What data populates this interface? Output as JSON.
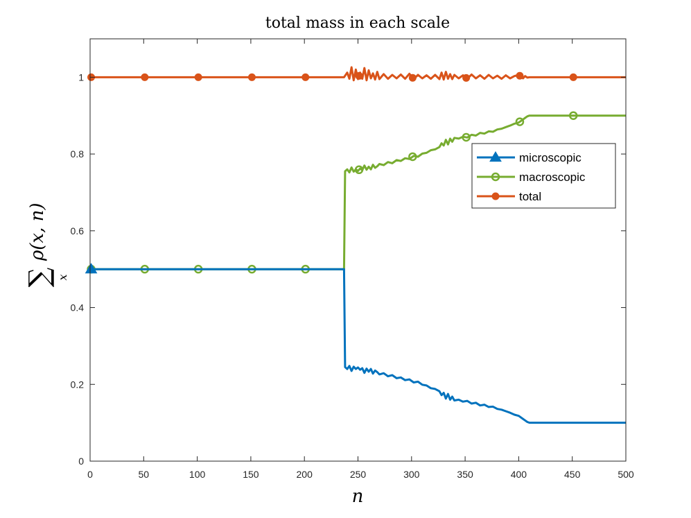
{
  "chart_data": {
    "type": "line",
    "title": "total mass in each scale",
    "xlabel": "n",
    "ylabel": {
      "sum_symbol": "∑",
      "subscript": "x",
      "expression": "ρ(x, n)"
    },
    "xlim": [
      0,
      500
    ],
    "ylim": [
      0,
      1.1
    ],
    "x_ticks": [
      0,
      50,
      100,
      150,
      200,
      250,
      300,
      350,
      400,
      450,
      500
    ],
    "x_tick_labels": [
      "0",
      "50",
      "100",
      "150",
      "200",
      "250",
      "300",
      "350",
      "400",
      "450",
      "500"
    ],
    "y_ticks": [
      0,
      0.2,
      0.4,
      0.6,
      0.8,
      1
    ],
    "y_tick_labels": [
      "0",
      "0.2",
      "0.4",
      "0.6",
      "0.8",
      "1"
    ],
    "grid": false,
    "legend_position": "upper-right",
    "series": [
      {
        "name": "microscopic",
        "color": "#0072BD",
        "marker": "triangle",
        "marker_x": [
          1
        ],
        "x": [
          1,
          237,
          238,
          240,
          242,
          244,
          246,
          248,
          250,
          252,
          254,
          256,
          258,
          260,
          262,
          264,
          266,
          268,
          270,
          274,
          278,
          282,
          286,
          290,
          294,
          298,
          302,
          306,
          310,
          314,
          318,
          322,
          326,
          328,
          330,
          332,
          334,
          336,
          338,
          340,
          344,
          348,
          352,
          356,
          360,
          364,
          368,
          372,
          376,
          380,
          384,
          388,
          392,
          396,
          400,
          404,
          406,
          408,
          410,
          500
        ],
        "y": [
          0.5,
          0.5,
          0.245,
          0.24,
          0.248,
          0.235,
          0.246,
          0.24,
          0.244,
          0.238,
          0.242,
          0.23,
          0.241,
          0.233,
          0.24,
          0.228,
          0.236,
          0.232,
          0.226,
          0.229,
          0.221,
          0.224,
          0.216,
          0.218,
          0.211,
          0.213,
          0.205,
          0.207,
          0.199,
          0.197,
          0.19,
          0.188,
          0.182,
          0.172,
          0.178,
          0.163,
          0.175,
          0.16,
          0.168,
          0.158,
          0.16,
          0.155,
          0.157,
          0.15,
          0.152,
          0.145,
          0.147,
          0.141,
          0.142,
          0.136,
          0.134,
          0.13,
          0.126,
          0.121,
          0.118,
          0.11,
          0.106,
          0.102,
          0.1,
          0.1
        ]
      },
      {
        "name": "macroscopic",
        "color": "#77AC30",
        "marker": "circle-open",
        "marker_x": [
          1,
          51,
          101,
          151,
          201,
          251,
          301,
          351,
          401,
          451
        ],
        "x": [
          0,
          237,
          238,
          240,
          242,
          244,
          246,
          248,
          250,
          252,
          254,
          256,
          258,
          260,
          262,
          264,
          266,
          268,
          270,
          274,
          278,
          282,
          286,
          290,
          294,
          298,
          302,
          306,
          310,
          314,
          318,
          322,
          326,
          328,
          330,
          332,
          334,
          336,
          338,
          340,
          344,
          348,
          352,
          356,
          360,
          364,
          368,
          372,
          376,
          380,
          384,
          388,
          392,
          396,
          400,
          404,
          406,
          408,
          410,
          500
        ],
        "y": [
          0.5,
          0.5,
          0.755,
          0.76,
          0.752,
          0.765,
          0.754,
          0.76,
          0.756,
          0.762,
          0.758,
          0.77,
          0.759,
          0.767,
          0.76,
          0.772,
          0.764,
          0.768,
          0.774,
          0.771,
          0.779,
          0.776,
          0.784,
          0.782,
          0.789,
          0.787,
          0.795,
          0.793,
          0.801,
          0.803,
          0.81,
          0.812,
          0.818,
          0.828,
          0.822,
          0.837,
          0.825,
          0.84,
          0.832,
          0.842,
          0.84,
          0.845,
          0.843,
          0.85,
          0.848,
          0.855,
          0.853,
          0.859,
          0.858,
          0.864,
          0.866,
          0.87,
          0.874,
          0.879,
          0.882,
          0.89,
          0.894,
          0.898,
          0.9,
          0.9
        ]
      },
      {
        "name": "total",
        "color": "#D95319",
        "marker": "circle-filled",
        "marker_x": [
          1,
          51,
          101,
          151,
          201,
          251,
          301,
          351,
          401,
          451
        ],
        "x": [
          0,
          237,
          240,
          242,
          244,
          246,
          248,
          250,
          252,
          254,
          256,
          258,
          260,
          262,
          264,
          266,
          268,
          270,
          274,
          278,
          282,
          286,
          290,
          294,
          298,
          302,
          306,
          310,
          314,
          318,
          322,
          326,
          328,
          330,
          332,
          334,
          336,
          338,
          340,
          344,
          348,
          352,
          356,
          360,
          364,
          368,
          372,
          376,
          380,
          384,
          388,
          392,
          396,
          400,
          404,
          406,
          408,
          410,
          500
        ],
        "y": [
          1,
          1,
          1.012,
          0.996,
          1.026,
          0.992,
          1.02,
          0.995,
          1.012,
          0.996,
          1.024,
          0.992,
          1.018,
          0.997,
          1.01,
          0.994,
          1.014,
          0.995,
          1.008,
          0.996,
          1.006,
          0.997,
          1.007,
          0.996,
          1.009,
          0.995,
          1.006,
          0.997,
          1.005,
          0.996,
          1.006,
          0.995,
          1.012,
          0.994,
          1.014,
          0.996,
          1.008,
          0.995,
          1.006,
          0.997,
          1.005,
          0.996,
          1.007,
          0.997,
          1.005,
          0.996,
          1.006,
          0.997,
          1.004,
          0.996,
          1.005,
          0.997,
          1.003,
          1.006,
          0.997,
          1.003,
          0.999,
          1,
          1
        ]
      }
    ]
  }
}
